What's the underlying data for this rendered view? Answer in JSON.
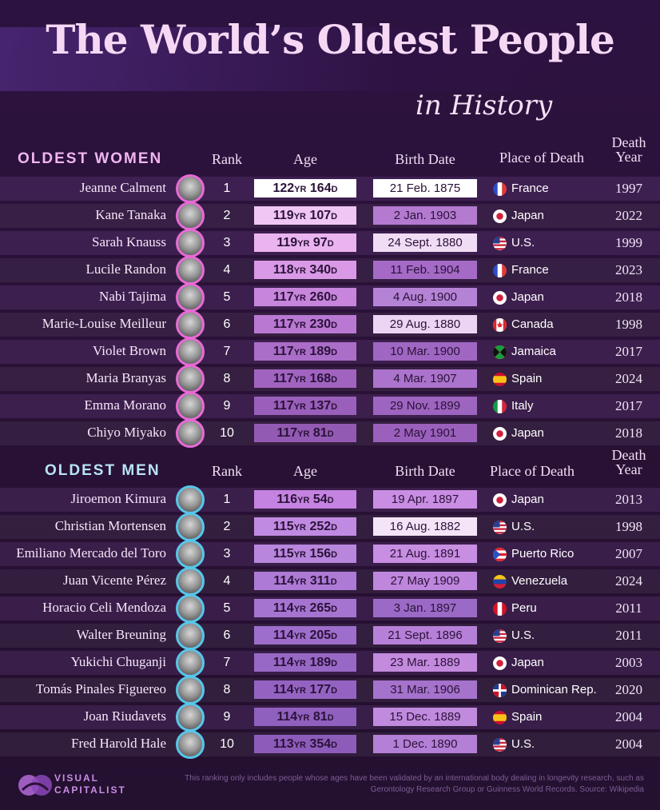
{
  "title": "The World’s Oldest People",
  "subtitle": "in History",
  "headers": {
    "rank": "Rank",
    "age": "Age",
    "birth_date": "Birth Date",
    "place_of_death": "Place of Death",
    "death_year": "Death\nYear"
  },
  "women": {
    "label": "OLDEST WOMEN",
    "rows": [
      {
        "name": "Jeanne Calment",
        "rank": "1",
        "age_yr": "122",
        "age_d": "164",
        "birth": "21 Feb. 1875",
        "place": "France",
        "flag": "flag-france-icon",
        "year": "1997"
      },
      {
        "name": "Kane Tanaka",
        "rank": "2",
        "age_yr": "119",
        "age_d": "107",
        "birth": "2 Jan. 1903",
        "place": "Japan",
        "flag": "flag-japan-icon",
        "year": "2022"
      },
      {
        "name": "Sarah Knauss",
        "rank": "3",
        "age_yr": "119",
        "age_d": "97",
        "birth": "24 Sept. 1880",
        "place": "U.S.",
        "flag": "flag-us-icon",
        "year": "1999"
      },
      {
        "name": "Lucile Randon",
        "rank": "4",
        "age_yr": "118",
        "age_d": "340",
        "birth": "11 Feb. 1904",
        "place": "France",
        "flag": "flag-france-icon",
        "year": "2023"
      },
      {
        "name": "Nabi Tajima",
        "rank": "5",
        "age_yr": "117",
        "age_d": "260",
        "birth": "4 Aug. 1900",
        "place": "Japan",
        "flag": "flag-japan-icon",
        "year": "2018"
      },
      {
        "name": "Marie-Louise Meilleur",
        "rank": "6",
        "age_yr": "117",
        "age_d": "230",
        "birth": "29 Aug. 1880",
        "place": "Canada",
        "flag": "flag-canada-icon",
        "year": "1998"
      },
      {
        "name": "Violet Brown",
        "rank": "7",
        "age_yr": "117",
        "age_d": "189",
        "birth": "10 Mar. 1900",
        "place": "Jamaica",
        "flag": "flag-jamaica-icon",
        "year": "2017"
      },
      {
        "name": "Maria Branyas",
        "rank": "8",
        "age_yr": "117",
        "age_d": "168",
        "birth": "4 Mar. 1907",
        "place": "Spain",
        "flag": "flag-spain-icon",
        "year": "2024"
      },
      {
        "name": "Emma Morano",
        "rank": "9",
        "age_yr": "117",
        "age_d": "137",
        "birth": "29 Nov. 1899",
        "place": "Italy",
        "flag": "flag-italy-icon",
        "year": "2017"
      },
      {
        "name": "Chiyo Miyako",
        "rank": "10",
        "age_yr": "117",
        "age_d": "81",
        "birth": "2 May 1901",
        "place": "Japan",
        "flag": "flag-japan-icon",
        "year": "2018"
      }
    ]
  },
  "men": {
    "label": "OLDEST MEN",
    "rows": [
      {
        "name": "Jiroemon Kimura",
        "rank": "1",
        "age_yr": "116",
        "age_d": "54",
        "birth": "19 Apr. 1897",
        "place": "Japan",
        "flag": "flag-japan-icon",
        "year": "2013"
      },
      {
        "name": "Christian Mortensen",
        "rank": "2",
        "age_yr": "115",
        "age_d": "252",
        "birth": "16 Aug. 1882",
        "place": "U.S.",
        "flag": "flag-us-icon",
        "year": "1998"
      },
      {
        "name": "Emiliano Mercado del Toro",
        "rank": "3",
        "age_yr": "115",
        "age_d": "156",
        "birth": "21 Aug. 1891",
        "place": "Puerto Rico",
        "flag": "flag-puerto-rico-icon",
        "year": "2007"
      },
      {
        "name": "Juan Vicente Pérez",
        "rank": "4",
        "age_yr": "114",
        "age_d": "311",
        "birth": "27 May 1909",
        "place": "Venezuela",
        "flag": "flag-venezuela-icon",
        "year": "2024"
      },
      {
        "name": "Horacio Celi Mendoza",
        "rank": "5",
        "age_yr": "114",
        "age_d": "265",
        "birth": "3 Jan. 1897",
        "place": "Peru",
        "flag": "flag-peru-icon",
        "year": "2011"
      },
      {
        "name": "Walter Breuning",
        "rank": "6",
        "age_yr": "114",
        "age_d": "205",
        "birth": "21 Sept. 1896",
        "place": "U.S.",
        "flag": "flag-us-icon",
        "year": "2011"
      },
      {
        "name": "Yukichi Chuganji",
        "rank": "7",
        "age_yr": "114",
        "age_d": "189",
        "birth": "23 Mar. 1889",
        "place": "Japan",
        "flag": "flag-japan-icon",
        "year": "2003"
      },
      {
        "name": "Tomás Pinales Figuereo",
        "rank": "8",
        "age_yr": "114",
        "age_d": "177",
        "birth": "31 Mar. 1906",
        "place": "Dominican Rep.",
        "flag": "flag-dominican-icon",
        "year": "2020"
      },
      {
        "name": "Joan Riudavets",
        "rank": "9",
        "age_yr": "114",
        "age_d": "81",
        "birth": "15 Dec. 1889",
        "place": "Spain",
        "flag": "flag-spain-icon",
        "year": "2004"
      },
      {
        "name": "Fred Harold Hale",
        "rank": "10",
        "age_yr": "113",
        "age_d": "354",
        "birth": "1 Dec. 1890",
        "place": "U.S.",
        "flag": "flag-us-icon",
        "year": "2004"
      }
    ]
  },
  "units": {
    "yr": "YR",
    "d": "D"
  },
  "footer": {
    "logo_line1": "VISUAL",
    "logo_line2": "CAPITALIST",
    "source": "This ranking only includes people whose ages have been validated by an international body dealing in longevity research, such as Gerontology Research Group or Guinness World Records. Source: Wikipedia"
  },
  "colors": {
    "women_accent": "#e86ad6",
    "men_accent": "#58c6ea",
    "women_label": "#f0b6f0",
    "men_label": "#b8e4f6"
  }
}
